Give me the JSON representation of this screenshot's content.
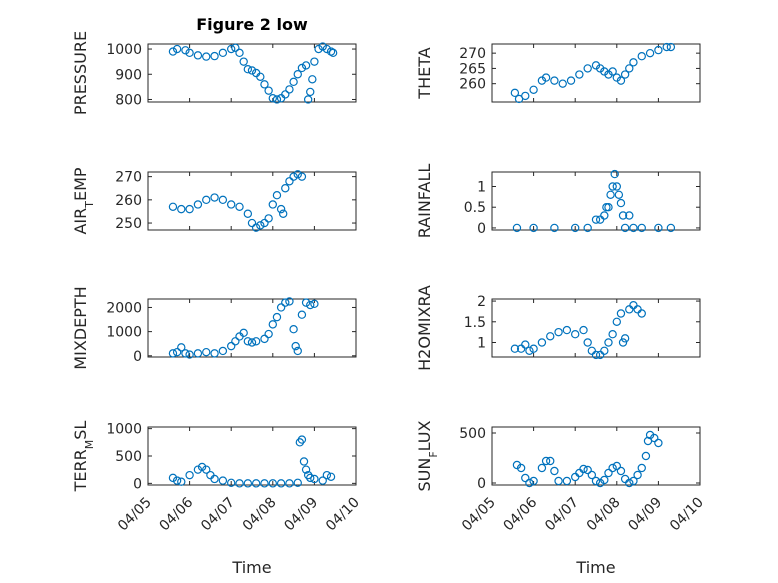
{
  "figure_title": "Figure 2 low",
  "colors": {
    "marker": "#0072BD",
    "axis": "#262626",
    "grid": "#c8c8c8"
  },
  "chart_data": [
    {
      "type": "scatter",
      "ylabel": "PRESSURE",
      "ylim": [
        790,
        1020
      ],
      "yticks": [
        800,
        900,
        1000
      ],
      "xlim": [
        0,
        5
      ],
      "grid": true,
      "marker": "circle",
      "title": "Figure 2 low",
      "points": [
        [
          0.6,
          990
        ],
        [
          0.7,
          1000
        ],
        [
          0.9,
          995
        ],
        [
          1.0,
          985
        ],
        [
          1.2,
          975
        ],
        [
          1.4,
          970
        ],
        [
          1.6,
          972
        ],
        [
          1.8,
          985
        ],
        [
          2.0,
          1000
        ],
        [
          2.1,
          1005
        ],
        [
          2.2,
          985
        ],
        [
          2.3,
          950
        ],
        [
          2.4,
          920
        ],
        [
          2.5,
          915
        ],
        [
          2.6,
          905
        ],
        [
          2.7,
          890
        ],
        [
          2.8,
          860
        ],
        [
          2.9,
          835
        ],
        [
          3.0,
          805
        ],
        [
          3.1,
          800
        ],
        [
          3.2,
          805
        ],
        [
          3.3,
          820
        ],
        [
          3.4,
          840
        ],
        [
          3.5,
          870
        ],
        [
          3.6,
          900
        ],
        [
          3.7,
          925
        ],
        [
          3.8,
          935
        ],
        [
          3.85,
          800
        ],
        [
          3.9,
          830
        ],
        [
          3.95,
          880
        ],
        [
          4.0,
          950
        ],
        [
          4.1,
          1000
        ],
        [
          4.2,
          1010
        ],
        [
          4.3,
          1000
        ],
        [
          4.4,
          990
        ],
        [
          4.45,
          985
        ]
      ]
    },
    {
      "type": "scatter",
      "ylabel": "THETA",
      "ylim": [
        254,
        273
      ],
      "yticks": [
        260,
        265,
        270
      ],
      "xlim": [
        0,
        5
      ],
      "grid": true,
      "marker": "circle",
      "points": [
        [
          0.55,
          257
        ],
        [
          0.65,
          255
        ],
        [
          0.8,
          256
        ],
        [
          1.0,
          258
        ],
        [
          1.2,
          261
        ],
        [
          1.3,
          262
        ],
        [
          1.5,
          261
        ],
        [
          1.7,
          260
        ],
        [
          1.9,
          261
        ],
        [
          2.1,
          263
        ],
        [
          2.3,
          265
        ],
        [
          2.5,
          266
        ],
        [
          2.6,
          265
        ],
        [
          2.7,
          264
        ],
        [
          2.8,
          263
        ],
        [
          2.9,
          264
        ],
        [
          3.0,
          262
        ],
        [
          3.1,
          261
        ],
        [
          3.2,
          263
        ],
        [
          3.3,
          265
        ],
        [
          3.4,
          267
        ],
        [
          3.6,
          269
        ],
        [
          3.8,
          270
        ],
        [
          4.0,
          271
        ],
        [
          4.2,
          272
        ],
        [
          4.3,
          272
        ]
      ]
    },
    {
      "type": "scatter",
      "ylabel": "AIR_TEMP",
      "ylim": [
        247,
        272
      ],
      "yticks": [
        250,
        260,
        270
      ],
      "xlim": [
        0,
        5
      ],
      "grid": true,
      "marker": "circle",
      "points": [
        [
          0.6,
          257
        ],
        [
          0.8,
          256
        ],
        [
          1.0,
          256
        ],
        [
          1.2,
          258
        ],
        [
          1.4,
          260
        ],
        [
          1.6,
          261
        ],
        [
          1.8,
          260
        ],
        [
          2.0,
          258
        ],
        [
          2.2,
          257
        ],
        [
          2.4,
          254
        ],
        [
          2.5,
          250
        ],
        [
          2.6,
          248
        ],
        [
          2.7,
          249
        ],
        [
          2.8,
          250
        ],
        [
          2.9,
          252
        ],
        [
          3.0,
          258
        ],
        [
          3.1,
          262
        ],
        [
          3.2,
          256
        ],
        [
          3.25,
          254
        ],
        [
          3.3,
          265
        ],
        [
          3.4,
          268
        ],
        [
          3.5,
          270
        ],
        [
          3.6,
          271
        ],
        [
          3.7,
          270
        ]
      ]
    },
    {
      "type": "scatter",
      "ylabel": "RAINFALL",
      "ylim": [
        -0.05,
        1.35
      ],
      "yticks": [
        0,
        0.5,
        1
      ],
      "xlim": [
        0,
        5
      ],
      "grid": true,
      "marker": "circle",
      "points": [
        [
          0.6,
          0
        ],
        [
          1.0,
          0
        ],
        [
          1.5,
          0
        ],
        [
          2.0,
          0
        ],
        [
          2.3,
          0
        ],
        [
          2.5,
          0.2
        ],
        [
          2.6,
          0.2
        ],
        [
          2.7,
          0.3
        ],
        [
          2.75,
          0.5
        ],
        [
          2.8,
          0.5
        ],
        [
          2.85,
          0.8
        ],
        [
          2.9,
          1.0
        ],
        [
          2.95,
          1.3
        ],
        [
          3.0,
          1.0
        ],
        [
          3.05,
          0.8
        ],
        [
          3.1,
          0.6
        ],
        [
          3.15,
          0.3
        ],
        [
          3.2,
          0
        ],
        [
          3.3,
          0.3
        ],
        [
          3.4,
          0
        ],
        [
          3.6,
          0
        ],
        [
          4.0,
          0
        ],
        [
          4.3,
          0
        ]
      ]
    },
    {
      "type": "scatter",
      "ylabel": "MIXDEPTH",
      "ylim": [
        -50,
        2350
      ],
      "yticks": [
        0,
        1000,
        2000
      ],
      "xlim": [
        0,
        5
      ],
      "grid": true,
      "marker": "circle",
      "points": [
        [
          0.6,
          100
        ],
        [
          0.7,
          150
        ],
        [
          0.8,
          350
        ],
        [
          0.9,
          100
        ],
        [
          1.0,
          50
        ],
        [
          1.2,
          100
        ],
        [
          1.4,
          150
        ],
        [
          1.6,
          100
        ],
        [
          1.8,
          200
        ],
        [
          2.0,
          400
        ],
        [
          2.1,
          600
        ],
        [
          2.2,
          800
        ],
        [
          2.3,
          950
        ],
        [
          2.4,
          600
        ],
        [
          2.5,
          550
        ],
        [
          2.6,
          600
        ],
        [
          2.8,
          700
        ],
        [
          2.9,
          900
        ],
        [
          3.0,
          1300
        ],
        [
          3.1,
          1600
        ],
        [
          3.2,
          2000
        ],
        [
          3.3,
          2200
        ],
        [
          3.4,
          2250
        ],
        [
          3.5,
          1100
        ],
        [
          3.55,
          400
        ],
        [
          3.6,
          200
        ],
        [
          3.7,
          1700
        ],
        [
          3.8,
          2200
        ],
        [
          3.9,
          2100
        ],
        [
          4.0,
          2150
        ]
      ]
    },
    {
      "type": "scatter",
      "ylabel": "H2OMIXRA",
      "ylim": [
        0.65,
        2.05
      ],
      "yticks": [
        1,
        1.5,
        2
      ],
      "xlim": [
        0,
        5
      ],
      "grid": true,
      "marker": "circle",
      "points": [
        [
          0.55,
          0.85
        ],
        [
          0.7,
          0.85
        ],
        [
          0.8,
          0.95
        ],
        [
          0.9,
          0.8
        ],
        [
          1.0,
          0.85
        ],
        [
          1.2,
          1.0
        ],
        [
          1.4,
          1.15
        ],
        [
          1.6,
          1.25
        ],
        [
          1.8,
          1.3
        ],
        [
          2.0,
          1.2
        ],
        [
          2.2,
          1.3
        ],
        [
          2.3,
          1.0
        ],
        [
          2.4,
          0.8
        ],
        [
          2.5,
          0.7
        ],
        [
          2.6,
          0.7
        ],
        [
          2.7,
          0.8
        ],
        [
          2.8,
          1.0
        ],
        [
          2.9,
          1.2
        ],
        [
          3.0,
          1.5
        ],
        [
          3.1,
          1.7
        ],
        [
          3.15,
          1.0
        ],
        [
          3.2,
          1.1
        ],
        [
          3.3,
          1.8
        ],
        [
          3.4,
          1.9
        ],
        [
          3.5,
          1.8
        ],
        [
          3.6,
          1.7
        ]
      ]
    },
    {
      "type": "scatter",
      "ylabel": "TERR_MSL",
      "ylim": [
        -30,
        1030
      ],
      "yticks": [
        0,
        500,
        1000
      ],
      "xlim": [
        0,
        5
      ],
      "grid": true,
      "marker": "circle",
      "points": [
        [
          0.6,
          100
        ],
        [
          0.7,
          50
        ],
        [
          0.8,
          30
        ],
        [
          1.0,
          150
        ],
        [
          1.2,
          250
        ],
        [
          1.3,
          300
        ],
        [
          1.4,
          250
        ],
        [
          1.5,
          150
        ],
        [
          1.6,
          80
        ],
        [
          1.8,
          50
        ],
        [
          2.0,
          10
        ],
        [
          2.2,
          0
        ],
        [
          2.4,
          0
        ],
        [
          2.6,
          0
        ],
        [
          2.8,
          0
        ],
        [
          3.0,
          0
        ],
        [
          3.2,
          0
        ],
        [
          3.4,
          0
        ],
        [
          3.6,
          10
        ],
        [
          3.65,
          750
        ],
        [
          3.7,
          800
        ],
        [
          3.75,
          400
        ],
        [
          3.8,
          250
        ],
        [
          3.85,
          150
        ],
        [
          3.9,
          100
        ],
        [
          4.0,
          80
        ],
        [
          4.2,
          50
        ],
        [
          4.3,
          150
        ],
        [
          4.4,
          120
        ]
      ]
    },
    {
      "type": "scatter",
      "ylabel": "SUN_FLUX",
      "ylim": [
        -20,
        560
      ],
      "yticks": [
        0,
        500
      ],
      "xlim": [
        0,
        5
      ],
      "grid": true,
      "marker": "circle",
      "points": [
        [
          0.6,
          180
        ],
        [
          0.7,
          150
        ],
        [
          0.8,
          50
        ],
        [
          0.9,
          0
        ],
        [
          1.0,
          20
        ],
        [
          1.2,
          150
        ],
        [
          1.3,
          220
        ],
        [
          1.4,
          220
        ],
        [
          1.5,
          120
        ],
        [
          1.6,
          20
        ],
        [
          1.8,
          20
        ],
        [
          2.0,
          60
        ],
        [
          2.1,
          100
        ],
        [
          2.2,
          140
        ],
        [
          2.3,
          130
        ],
        [
          2.4,
          80
        ],
        [
          2.5,
          20
        ],
        [
          2.6,
          0
        ],
        [
          2.7,
          30
        ],
        [
          2.8,
          100
        ],
        [
          2.9,
          150
        ],
        [
          3.0,
          170
        ],
        [
          3.1,
          120
        ],
        [
          3.2,
          40
        ],
        [
          3.3,
          0
        ],
        [
          3.4,
          20
        ],
        [
          3.5,
          80
        ],
        [
          3.6,
          150
        ],
        [
          3.7,
          270
        ],
        [
          3.75,
          420
        ],
        [
          3.8,
          480
        ],
        [
          3.9,
          450
        ],
        [
          4.0,
          400
        ]
      ]
    }
  ],
  "x_axis": {
    "ticks": [
      0,
      1,
      2,
      3,
      4,
      5
    ],
    "tick_labels": [
      "04/05",
      "04/06",
      "04/07",
      "04/08",
      "04/09",
      "04/10"
    ],
    "xlabel": "Time"
  }
}
